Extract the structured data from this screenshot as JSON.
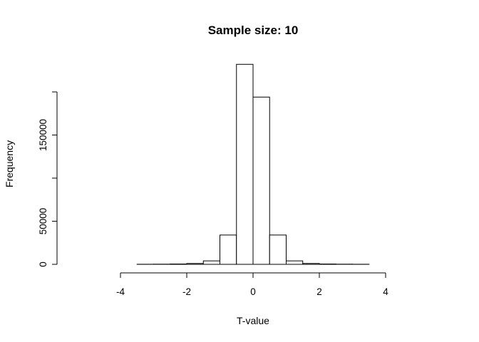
{
  "chart_data": {
    "type": "bar",
    "title": "Sample size: 10",
    "xlabel": "T-value",
    "ylabel": "Frequency",
    "bin_width": 0.5,
    "bins": [
      {
        "x0": -5.5,
        "x1": -5.0,
        "count": 0
      },
      {
        "x0": -5.0,
        "x1": -4.5,
        "count": 0
      },
      {
        "x0": -4.5,
        "x1": -4.0,
        "count": 0
      },
      {
        "x0": -4.0,
        "x1": -3.5,
        "count": 0
      },
      {
        "x0": -3.5,
        "x1": -3.0,
        "count": 100
      },
      {
        "x0": -3.0,
        "x1": -2.5,
        "count": 200
      },
      {
        "x0": -2.5,
        "x1": -2.0,
        "count": 400
      },
      {
        "x0": -2.0,
        "x1": -1.5,
        "count": 1000
      },
      {
        "x0": -1.5,
        "x1": -1.0,
        "count": 4000
      },
      {
        "x0": -1.0,
        "x1": -0.5,
        "count": 34000
      },
      {
        "x0": -0.5,
        "x1": 0.0,
        "count": 232000
      },
      {
        "x0": 0.0,
        "x1": 0.5,
        "count": 194000
      },
      {
        "x0": 0.5,
        "x1": 1.0,
        "count": 34000
      },
      {
        "x0": 1.0,
        "x1": 1.5,
        "count": 4000
      },
      {
        "x0": 1.5,
        "x1": 2.0,
        "count": 1000
      },
      {
        "x0": 2.0,
        "x1": 2.5,
        "count": 400
      },
      {
        "x0": 2.5,
        "x1": 3.0,
        "count": 200
      },
      {
        "x0": 3.0,
        "x1": 3.5,
        "count": 100
      },
      {
        "x0": 3.5,
        "x1": 4.0,
        "count": 0
      },
      {
        "x0": 4.0,
        "x1": 4.5,
        "count": 0
      },
      {
        "x0": 4.5,
        "x1": 5.0,
        "count": 0
      },
      {
        "x0": 5.0,
        "x1": 5.5,
        "count": 0
      }
    ],
    "x_ticks": [
      -4,
      -2,
      0,
      2,
      4
    ],
    "x_tick_labels": [
      "-4",
      "-2",
      "0",
      "2",
      "4"
    ],
    "y_ticks": [
      0,
      50000,
      100000,
      150000,
      200000
    ],
    "y_tick_labels": [
      "0",
      "50000",
      "",
      "150000",
      ""
    ],
    "xlim": [
      -5.5,
      5.5
    ],
    "ylim": [
      0,
      232000
    ],
    "grid": false,
    "legend": "none",
    "colors": {
      "bar_fill": "#ffffff",
      "bar_stroke": "#000000",
      "axis": "#000000"
    }
  }
}
